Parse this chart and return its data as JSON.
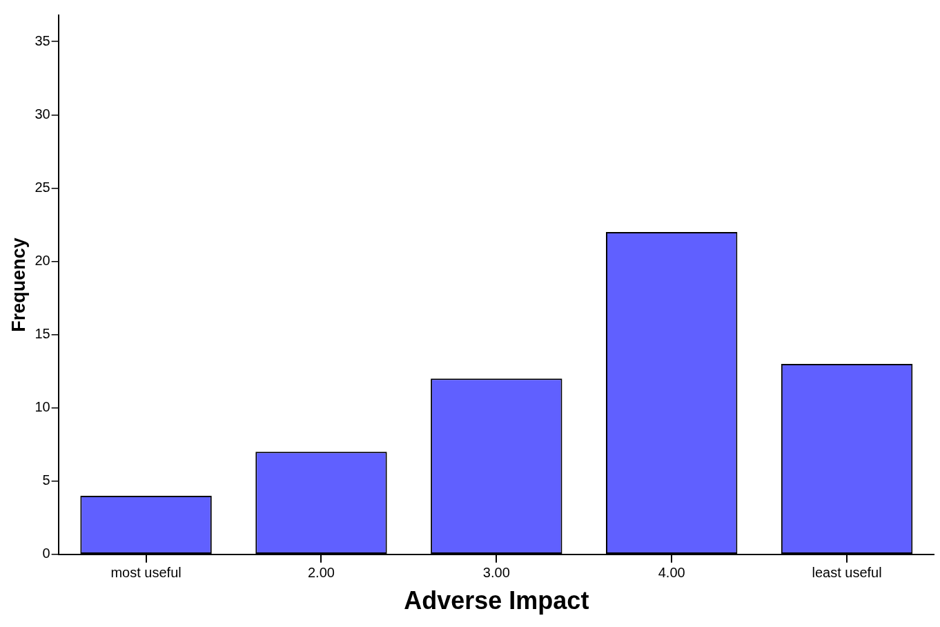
{
  "chart_data": {
    "type": "bar",
    "xlabel": "Adverse Impact",
    "ylabel": "Frequency",
    "categories": [
      "most useful",
      "2.00",
      "3.00",
      "4.00",
      "least useful"
    ],
    "values": [
      4,
      7,
      12,
      22,
      13
    ],
    "color": "#6060ff",
    "ylim": [
      0,
      36.8
    ],
    "yticks": [
      0,
      5,
      10,
      15,
      20,
      25,
      30,
      35
    ],
    "grid": false,
    "legend": false
  }
}
